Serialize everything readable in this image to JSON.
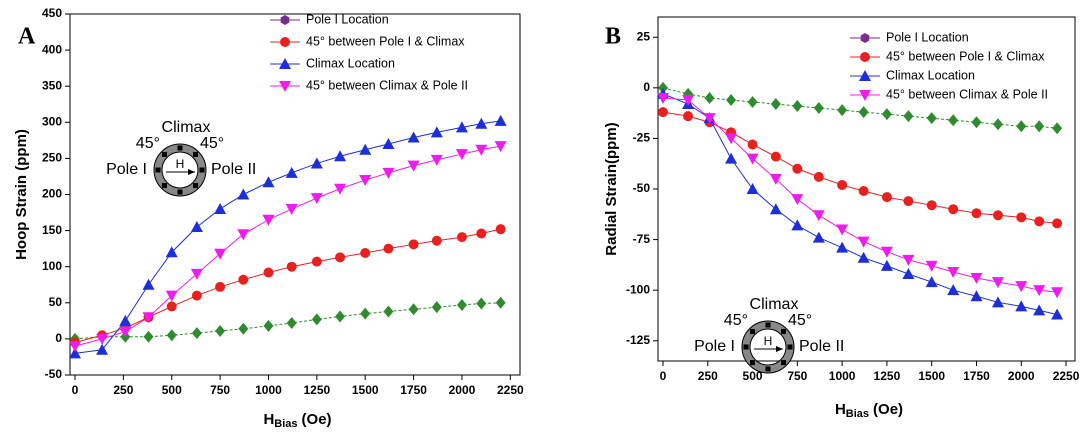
{
  "chart_data": [
    {
      "type": "line",
      "panel_label": "A",
      "y_label": "Hoop Strain (ppm)",
      "x_label": {
        "main": "H",
        "sub": "Bias",
        "unit": "(Oe)"
      },
      "xlim": [
        0,
        2300
      ],
      "xticks": [
        0,
        250,
        500,
        750,
        1000,
        1250,
        1500,
        1750,
        2000,
        2250
      ],
      "ylim": [
        -50,
        450
      ],
      "yticks": [
        -50,
        0,
        50,
        100,
        150,
        200,
        250,
        300,
        350,
        400,
        450
      ],
      "x": [
        0,
        140,
        260,
        380,
        500,
        630,
        750,
        870,
        1000,
        1120,
        1250,
        1370,
        1500,
        1620,
        1750,
        1870,
        2000,
        2100,
        2200
      ],
      "series": [
        {
          "name": "Pole I Location",
          "color": "#2e8b2e",
          "legend_color": "#7b2c8f",
          "marker": "hexagon",
          "values": [
            0,
            3,
            3,
            3,
            5,
            8,
            11,
            14,
            18,
            22,
            27,
            31,
            35,
            38,
            41,
            44,
            47,
            49,
            50
          ]
        },
        {
          "name": "45° between Pole I & Climax",
          "color": "#e8201e",
          "marker": "circle",
          "values": [
            -5,
            5,
            15,
            30,
            45,
            60,
            72,
            82,
            92,
            100,
            107,
            113,
            119,
            125,
            131,
            136,
            141,
            146,
            152
          ]
        },
        {
          "name": "Climax Location",
          "color": "#1c2fd8",
          "marker": "triangle-up",
          "values": [
            -20,
            -15,
            25,
            75,
            120,
            155,
            180,
            200,
            217,
            230,
            243,
            253,
            262,
            270,
            279,
            286,
            293,
            298,
            302
          ]
        },
        {
          "name": "45° between Climax & Pole II",
          "color": "#ee1cee",
          "marker": "triangle-down",
          "values": [
            -10,
            0,
            10,
            30,
            60,
            90,
            118,
            145,
            165,
            180,
            195,
            208,
            220,
            230,
            240,
            248,
            256,
            262,
            267
          ]
        }
      ],
      "inset": {
        "top": "Climax",
        "left_angle": "45°",
        "right_angle": "45°",
        "left": "Pole I",
        "center": "H",
        "right": "Pole II"
      }
    },
    {
      "type": "line",
      "panel_label": "B",
      "y_label": "Radial Strain(ppm)",
      "x_label": {
        "main": "H",
        "sub": "Bias",
        "unit": "(Oe)"
      },
      "xlim": [
        0,
        2300
      ],
      "xticks": [
        0,
        250,
        500,
        750,
        1000,
        1250,
        1500,
        1750,
        2000,
        2250
      ],
      "ylim": [
        -135,
        35
      ],
      "yticks": [
        -125,
        -100,
        -75,
        -50,
        -25,
        0,
        25
      ],
      "x": [
        0,
        140,
        260,
        380,
        500,
        630,
        750,
        870,
        1000,
        1120,
        1250,
        1370,
        1500,
        1620,
        1750,
        1870,
        2000,
        2100,
        2200
      ],
      "series": [
        {
          "name": "Pole I Location",
          "color": "#2e8b2e",
          "legend_color": "#7b2c8f",
          "marker": "hexagon",
          "values": [
            0,
            -3,
            -5,
            -6,
            -7,
            -8,
            -9,
            -10,
            -11,
            -12,
            -13,
            -14,
            -15,
            -16,
            -17,
            -18,
            -19,
            -19,
            -20
          ]
        },
        {
          "name": "45° between Pole I & Climax",
          "color": "#e8201e",
          "marker": "circle",
          "values": [
            -12,
            -14,
            -17,
            -22,
            -28,
            -34,
            -40,
            -44,
            -48,
            -51,
            -54,
            -56,
            -58,
            -60,
            -62,
            -63,
            -64,
            -66,
            -67
          ]
        },
        {
          "name": "Climax Location",
          "color": "#1c2fd8",
          "marker": "triangle-up",
          "values": [
            -3,
            -8,
            -15,
            -35,
            -50,
            -60,
            -68,
            -74,
            -79,
            -84,
            -88,
            -92,
            -96,
            -100,
            -103,
            -106,
            -108,
            -110,
            -112
          ]
        },
        {
          "name": "45° between Climax & Pole II",
          "color": "#ee1cee",
          "marker": "triangle-down",
          "values": [
            -5,
            -6,
            -15,
            -25,
            -35,
            -45,
            -55,
            -63,
            -70,
            -76,
            -81,
            -85,
            -88,
            -91,
            -94,
            -96,
            -98,
            -100,
            -101
          ]
        }
      ],
      "inset": {
        "top": "Climax",
        "left_angle": "45°",
        "right_angle": "45°",
        "left": "Pole I",
        "center": "H",
        "right": "Pole II"
      }
    }
  ]
}
